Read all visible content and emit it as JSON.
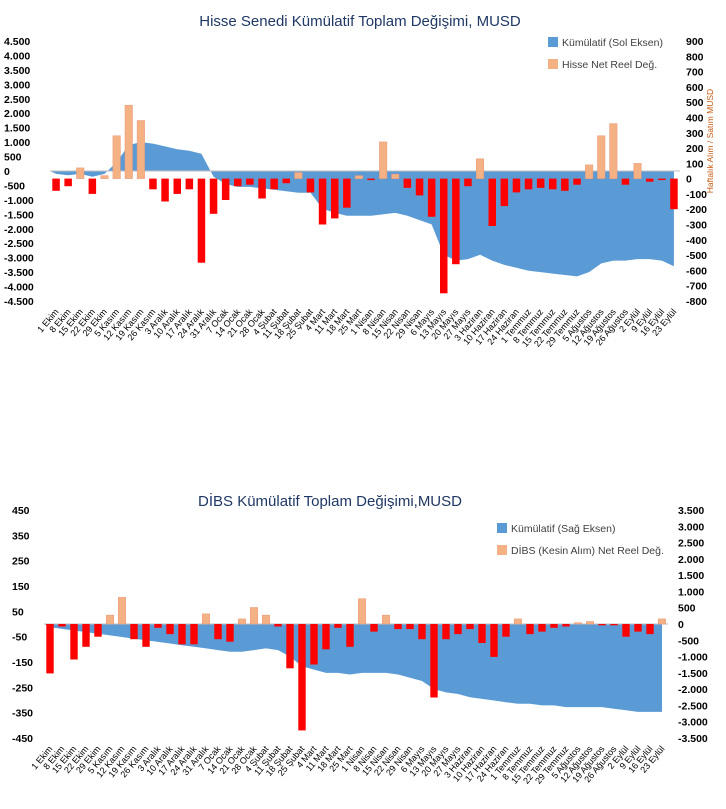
{
  "chart_data": [
    {
      "type": "bar",
      "title": "Hisse Senedi Kümülatif Toplam Değişimi, MUSD",
      "left_axis": {
        "ticks": [
          "4.500",
          "4.000",
          "3.500",
          "3.000",
          "2.500",
          "2.000",
          "1.500",
          "1.000",
          "500",
          "0",
          "-500",
          "-1.000",
          "-1.500",
          "-2.000",
          "-2.500",
          "-3.000",
          "-3.500",
          "-4.000",
          "-4.500"
        ],
        "range": [
          -4500,
          4500
        ]
      },
      "right_axis": {
        "ticks": [
          "900",
          "800",
          "700",
          "600",
          "500",
          "400",
          "300",
          "200",
          "100",
          "0",
          "-100",
          "-200",
          "-300",
          "-400",
          "-500",
          "-600",
          "-700",
          "-800"
        ],
        "range": [
          -800,
          900
        ],
        "label": "Haftalık Alım / Satım MUSD"
      },
      "legend": [
        "Kümülatif (Sol Eksen)",
        "Hisse Net Reel Değ."
      ],
      "legend_position": "top-right",
      "categories": [
        "1 Ekim",
        "8 Ekim",
        "15 Ekim",
        "22 Ekim",
        "29 Ekim",
        "5 Kasım",
        "12 Kasım",
        "19 Kasım",
        "26 Kasım",
        "3 Aralık",
        "10 Aralık",
        "17 Aralık",
        "24 Aralık",
        "31 Aralık",
        "7 Ocak",
        "14 Ocak",
        "21 Ocak",
        "28 Ocak",
        "4 Şubat",
        "11 Şubat",
        "18 Şubat",
        "25 Şubat",
        "4 Mart",
        "11 Mart",
        "18 Mart",
        "25 Mart",
        "1 Nisan",
        "8 Nisan",
        "15 Nisan",
        "22 Nisan",
        "29 Nisan",
        "6 Mayıs",
        "13 Mayıs",
        "20 Mayıs",
        "27 Mayıs",
        "3 Haziran",
        "10 Haziran",
        "17 Haziran",
        "24 Haziran",
        "1 Temmuz",
        "8 Temmuz",
        "15 Temmuz",
        "22 Temmuz",
        "29 Temmuz",
        "5 Ağustos",
        "12 Ağustos",
        "19 Ağustos",
        "26 Ağustos",
        "2 Eylül",
        "9 Eylül",
        "16 Eylül",
        "23 Eylül"
      ],
      "series": [
        {
          "name": "Hisse Net Reel Değ.",
          "axis": "right",
          "values": [
            -80,
            -50,
            70,
            -100,
            20,
            280,
            480,
            380,
            -70,
            -150,
            -100,
            -70,
            -550,
            -230,
            -140,
            -50,
            -40,
            -130,
            -70,
            -30,
            40,
            -90,
            -300,
            -260,
            -190,
            20,
            -10,
            240,
            30,
            -60,
            -110,
            -250,
            -750,
            -560,
            -50,
            130,
            -310,
            -180,
            -90,
            -70,
            -60,
            -70,
            -80,
            -40,
            90,
            280,
            360,
            -40,
            100,
            -20,
            -10,
            -200
          ]
        },
        {
          "name": "Kümülatif (Sol Eksen)",
          "axis": "left",
          "type": "area",
          "values": [
            -100,
            -150,
            -100,
            -200,
            -100,
            300,
            900,
            1000,
            950,
            850,
            750,
            700,
            600,
            -200,
            -450,
            -550,
            -550,
            -600,
            -650,
            -700,
            -750,
            -750,
            -1300,
            -1450,
            -1550,
            -1550,
            -1550,
            -1500,
            -1450,
            -1550,
            -1700,
            -1850,
            -2900,
            -3100,
            -3050,
            -2900,
            -3100,
            -3250,
            -3350,
            -3450,
            -3500,
            -3550,
            -3600,
            -3650,
            -3500,
            -3200,
            -3100,
            -3100,
            -3050,
            -3050,
            -3100,
            -3300
          ]
        }
      ]
    },
    {
      "type": "bar",
      "title": "DİBS Kümülatif Toplam Değişimi,MUSD",
      "left_axis": {
        "ticks": [
          "450",
          "350",
          "250",
          "150",
          "50",
          "-50",
          "-150",
          "-250",
          "-350",
          "-450"
        ],
        "range": [
          -450,
          450
        ]
      },
      "right_axis": {
        "ticks": [
          "3.500",
          "3.000",
          "2.500",
          "2.000",
          "1.500",
          "1.000",
          "500",
          "0",
          "-500",
          "-1.000",
          "-1.500",
          "-2.000",
          "-2.500",
          "-3.000",
          "-3.500"
        ],
        "range": [
          -3500,
          3500
        ]
      },
      "legend": [
        "Kümülatif (Sağ Eksen)",
        "DİBS (Kesin Alım) Net Reel Değ."
      ],
      "legend_position": "top-right",
      "categories": [
        "1 Ekim",
        "8 Ekim",
        "15 Ekim",
        "22 Ekim",
        "29 Ekim",
        "5 Kasım",
        "12 Kasım",
        "19 Kasım",
        "26 Kasım",
        "3 Aralık",
        "10 Aralık",
        "17 Aralık",
        "24 Aralık",
        "31 Aralık",
        "7 Ocak",
        "14 Ocak",
        "21 Ocak",
        "28 Ocak",
        "4 Şubat",
        "11 Şubat",
        "18 Şubat",
        "25 Şubat",
        "4 Mart",
        "11 Mart",
        "18 Mart",
        "25 Mart",
        "1 Nisan",
        "8 Nisan",
        "15 Nisan",
        "22 Nisan",
        "29 Nisan",
        "6 Mayıs",
        "13 Mayıs",
        "20 Mayıs",
        "27 Mayıs",
        "3 Haziran",
        "10 Haziran",
        "17 Haziran",
        "24 Haziran",
        "1 Temmuz",
        "8 Temmuz",
        "15 Temmuz",
        "22 Temmuz",
        "29 Temmuz",
        "5 Ağustos",
        "12 Ağustos",
        "19 Ağustos",
        "26 Ağustos",
        "2 Eylül",
        "9 Eylül",
        "16 Eylül",
        "23 Eylül"
      ],
      "series": [
        {
          "name": "DİBS (Kesin Alım) Net Reel Değ.",
          "axis": "left",
          "values": [
            -195,
            -10,
            -140,
            -90,
            -50,
            35,
            105,
            -60,
            -90,
            -15,
            -40,
            -80,
            -80,
            40,
            -60,
            -70,
            20,
            65,
            35,
            -10,
            -175,
            -420,
            -160,
            -100,
            -15,
            -90,
            100,
            -30,
            35,
            -20,
            -20,
            -60,
            -290,
            -60,
            -40,
            -20,
            -75,
            -130,
            -50,
            20,
            -40,
            -30,
            -15,
            -10,
            5,
            10,
            -5,
            -5,
            -50,
            -30,
            -40,
            20
          ]
        },
        {
          "name": "Kümülatif (Sağ Eksen)",
          "axis": "right",
          "type": "area",
          "values": [
            -100,
            -150,
            -200,
            -250,
            -300,
            -350,
            -400,
            -450,
            -500,
            -550,
            -600,
            -650,
            -700,
            -750,
            -800,
            -850,
            -850,
            -800,
            -750,
            -800,
            -1000,
            -1300,
            -1400,
            -1500,
            -1500,
            -1550,
            -1500,
            -1500,
            -1500,
            -1550,
            -1650,
            -1750,
            -2000,
            -2100,
            -2150,
            -2250,
            -2300,
            -2350,
            -2400,
            -2450,
            -2450,
            -2500,
            -2500,
            -2550,
            -2550,
            -2550,
            -2550,
            -2600,
            -2650,
            -2700,
            -2700,
            -2700
          ]
        }
      ]
    }
  ]
}
